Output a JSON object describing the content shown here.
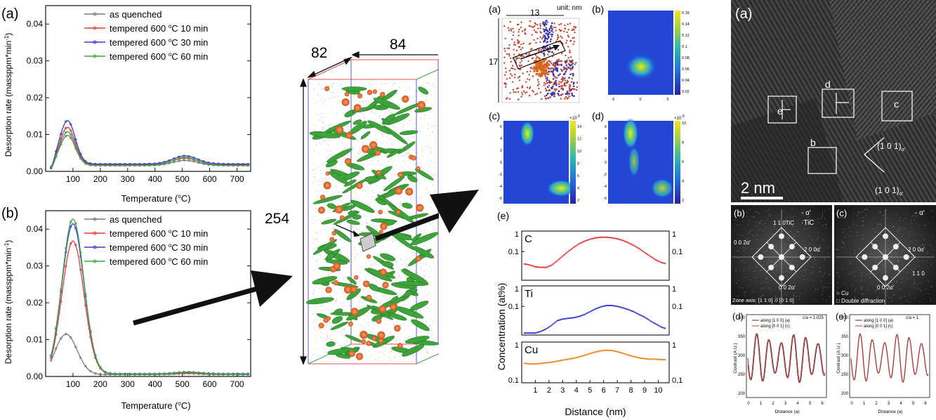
{
  "desorption_panels": [
    {
      "panel": "(a)",
      "ylabel": "Desorption rate (massppm*min",
      "ylabel_sup": "-1",
      "ylabel_end": ")",
      "xlabel": "Temperature (",
      "xlabel_sup": "o",
      "xlabel_end": "C)"
    },
    {
      "panel": "(b)",
      "ylabel": "Desorption rate (massppm*min",
      "ylabel_sup": "-1",
      "ylabel_end": ")",
      "xlabel": "Temperature (",
      "xlabel_sup": "o",
      "xlabel_end": "C)"
    }
  ],
  "apt": {
    "dim_x": "82",
    "dim_y": "84",
    "dim_z": "254"
  },
  "maps": {
    "a_label": "(a)",
    "b_label": "(b)",
    "c_label": "(c)",
    "d_label": "(d)",
    "a_width": "13",
    "a_unit": "unit: nm",
    "a_height": "17",
    "b_scale": [
      "0.16",
      "0.14",
      "0.12",
      "0.1",
      "0.08",
      "0.06",
      "0.04",
      "0.02"
    ],
    "c_scale": [
      "14",
      "12",
      "10",
      "8",
      "6",
      "4",
      "2"
    ],
    "c_exp": "×10",
    "c_exp_sup": "-3",
    "d_scale": [
      "10",
      "8",
      "6",
      "4",
      "2"
    ],
    "d_exp": "×10",
    "d_exp_sup": "-3",
    "y_ticks": [
      "6",
      "4",
      "2",
      "0",
      "-2",
      "-4",
      "-6"
    ],
    "x_ticks": [
      "-5",
      "0",
      "5"
    ]
  },
  "concentration": {
    "label": "(e)",
    "ylabel": "Concentration (at%)",
    "xlabel": "Distance (nm)",
    "species": [
      "C",
      "Ti",
      "Cu"
    ],
    "left_ticks": [
      "1",
      "0.1"
    ],
    "right_ticks": [
      "1",
      "0.1"
    ],
    "cu_right_bottom": "0,1"
  },
  "hrtem": {
    "a_label": "(a)",
    "box_labels": [
      "e",
      "d",
      "c",
      "b"
    ],
    "scale_bar": "2 nm",
    "plane_top": "(1 0 1)",
    "plane_top_sub": "α'",
    "plane_bottom": "(1 0 1)",
    "plane_bottom_sub": "α'",
    "fft_b_label": "(b)",
    "fft_b_legend": [
      "- α'",
      "·TiC"
    ],
    "fft_b_spots": [
      "1 1 0TiC",
      "0 0 2α'",
      "2 0 0α'",
      "0 0 2α'"
    ],
    "fft_b_zone": "Zone axis: [1 1 0]",
    "fft_b_zone2": "// [0 1 0]",
    "fft_c_label": "(c)",
    "fft_c_legend": "- α'",
    "fft_c_spots": [
      "2 0 0α'",
      "1 1 0",
      "0 0 2α'"
    ],
    "fft_c_legend2": [
      "○ Cu",
      "□ Double diffraction"
    ],
    "profile_d_label": "(d)",
    "profile_e_label": "(e)",
    "profile_d_ratio": "c/a = 1.025",
    "profile_e_ratio": "c/a = 1",
    "profile_legend": [
      "along [1 0 0] (a)",
      "along [0 0 1] (c)"
    ],
    "profile_ylabel": "Contrast (A.U.)",
    "profile_xlabel": "Distance (a)"
  },
  "chart_data": [
    {
      "type": "line",
      "title": "",
      "xlabel": "Temperature (oC)",
      "ylabel": "Desorption rate (massppm*min-1)",
      "xlim": [
        0,
        750
      ],
      "ylim": [
        0,
        0.045
      ],
      "xticks": [
        100,
        200,
        300,
        400,
        500,
        600,
        700
      ],
      "yticks": [
        0.0,
        0.01,
        0.02,
        0.03,
        0.04
      ],
      "legend": "top-right",
      "series": [
        {
          "name": "as quenched",
          "color": "#7a7a7a",
          "peak1": [
            80,
            0.0098
          ],
          "peak2": [
            510,
            0.003
          ],
          "baseline": 0.0016
        },
        {
          "name": "tempered 600 oC 10 min",
          "color": "#e83a3a",
          "peak1": [
            80,
            0.012
          ],
          "peak2": [
            510,
            0.0036
          ],
          "baseline": 0.0018
        },
        {
          "name": "tempered 600 oC 30 min",
          "color": "#3a3ad8",
          "peak1": [
            80,
            0.0138
          ],
          "peak2": [
            510,
            0.0042
          ],
          "baseline": 0.002
        },
        {
          "name": "tempered 600 oC 60 min",
          "color": "#3ea63e",
          "peak1": [
            80,
            0.0108
          ],
          "peak2": [
            510,
            0.0038
          ],
          "baseline": 0.0016
        }
      ]
    },
    {
      "type": "line",
      "title": "",
      "xlabel": "Temperature (oC)",
      "ylabel": "Desorption rate (massppm*min-1)",
      "xlim": [
        0,
        750
      ],
      "ylim": [
        0,
        0.045
      ],
      "xticks": [
        100,
        200,
        300,
        400,
        500,
        600,
        700
      ],
      "yticks": [
        0.0,
        0.01,
        0.02,
        0.03,
        0.04
      ],
      "legend": "top-right",
      "series": [
        {
          "name": "as quenched",
          "color": "#7a7a7a",
          "peak1": [
            75,
            0.0115
          ],
          "peak2": [
            520,
            0.0008
          ],
          "baseline": 0.0005
        },
        {
          "name": "tempered 600 oC 10 min",
          "color": "#e83a3a",
          "peak1": [
            100,
            0.0368
          ],
          "peak2": [
            520,
            0.001
          ],
          "baseline": 0.0006
        },
        {
          "name": "tempered 600 oC 30 min",
          "color": "#3a3ad8",
          "peak1": [
            100,
            0.0415
          ],
          "peak2": [
            520,
            0.0012
          ],
          "baseline": 0.0007
        },
        {
          "name": "tempered 600 oC 60 min",
          "color": "#3ea63e",
          "peak1": [
            100,
            0.0428
          ],
          "peak2": [
            520,
            0.0012
          ],
          "baseline": 0.0006
        }
      ]
    },
    {
      "type": "scatter",
      "title": "(e)",
      "xlabel": "Distance (nm)",
      "ylabel": "Concentration (at%)",
      "xlim": [
        0,
        10.8
      ],
      "xticks": [
        1,
        2,
        3,
        4,
        5,
        6,
        7,
        8,
        9,
        10
      ],
      "yscale": "log",
      "series": [
        {
          "name": "C",
          "color": "#e83a3a",
          "x": [
            0.2,
            0.6,
            1.0,
            1.4,
            1.8,
            2.2,
            2.6,
            3.0,
            3.4,
            3.8,
            4.2,
            4.6,
            5.0,
            5.4,
            5.8,
            6.2,
            6.6,
            7.0,
            7.4,
            7.8,
            8.2,
            8.6,
            9.0,
            9.4,
            9.8,
            10.2,
            10.6
          ],
          "y": [
            0.025,
            0.022,
            0.018,
            0.017,
            0.017,
            0.022,
            0.035,
            0.06,
            0.1,
            0.16,
            0.24,
            0.32,
            0.4,
            0.46,
            0.5,
            0.5,
            0.47,
            0.42,
            0.35,
            0.27,
            0.2,
            0.14,
            0.09,
            0.06,
            0.04,
            0.03,
            0.025
          ]
        },
        {
          "name": "Ti",
          "color": "#3a3ad8",
          "x": [
            0.2,
            0.6,
            1.0,
            1.4,
            1.8,
            2.2,
            2.6,
            3.0,
            3.4,
            3.8,
            4.2,
            4.6,
            5.0,
            5.4,
            5.8,
            6.2,
            6.6,
            7.0,
            7.4,
            7.8,
            8.2,
            8.6,
            9.0,
            9.4,
            9.8,
            10.2,
            10.6
          ],
          "y": [
            0.005,
            0.005,
            0.005,
            0.006,
            0.008,
            0.012,
            0.02,
            0.024,
            0.026,
            0.028,
            0.032,
            0.04,
            0.055,
            0.075,
            0.095,
            0.11,
            0.11,
            0.1,
            0.085,
            0.07,
            0.055,
            0.04,
            0.03,
            0.02,
            0.014,
            0.01,
            0.008
          ]
        },
        {
          "name": "Cu",
          "color": "#f08a1e",
          "x": [
            0.2,
            0.6,
            1.0,
            1.4,
            1.8,
            2.2,
            2.6,
            3.0,
            3.4,
            3.8,
            4.2,
            4.6,
            5.0,
            5.4,
            5.8,
            6.2,
            6.6,
            7.0,
            7.4,
            7.8,
            8.2,
            8.6,
            9.0,
            9.4,
            9.8,
            10.2,
            10.6
          ],
          "y": [
            0.3,
            0.29,
            0.29,
            0.3,
            0.31,
            0.32,
            0.34,
            0.36,
            0.38,
            0.4,
            0.43,
            0.47,
            0.52,
            0.57,
            0.61,
            0.63,
            0.62,
            0.58,
            0.53,
            0.48,
            0.44,
            0.41,
            0.39,
            0.38,
            0.38,
            0.37,
            0.37
          ]
        }
      ]
    }
  ]
}
